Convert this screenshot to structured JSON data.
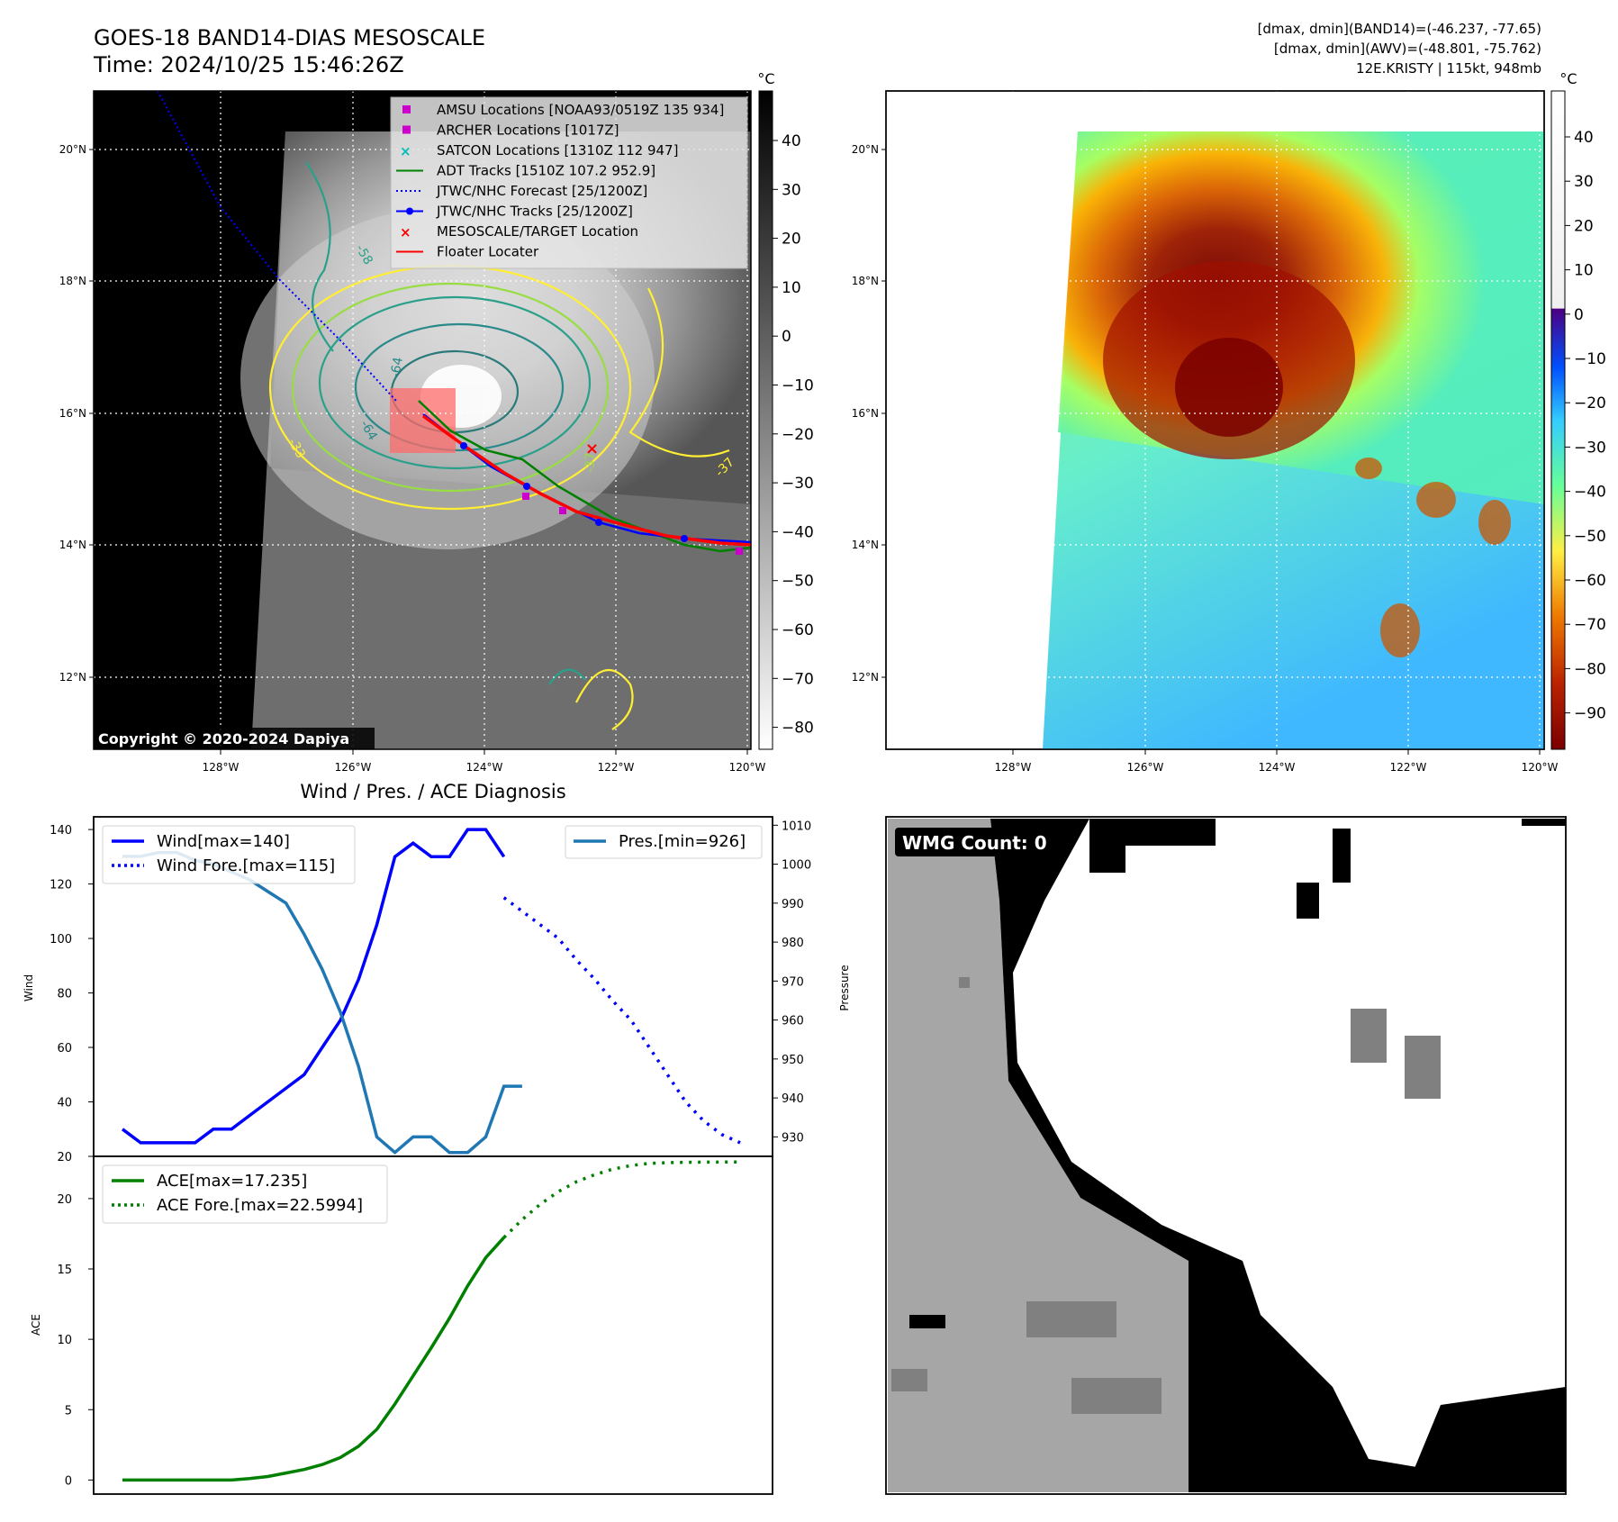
{
  "header": {
    "title": "GOES-18 BAND14-DIAS MESOSCALE",
    "time": "Time: 2024/10/25 15:46:26Z",
    "info_lines": [
      "[dmax, dmin](BAND14)=(-46.237, -77.65)",
      "[dmax, dmin](AWV)=(-48.801, -75.762)",
      "12E.KRISTY | 115kt, 948mb"
    ]
  },
  "colors": {
    "wind": "#0000ff",
    "pressure": "#1f77b4",
    "ace": "#008000",
    "track_red": "#ff0000",
    "adt": "#008000",
    "amsu": "#cc00cc",
    "satcon": "#00bbbb"
  },
  "maps": {
    "lat_labels": [
      "20°N",
      "18°N",
      "16°N",
      "14°N",
      "12°N"
    ],
    "lon_labels": [
      "128°W",
      "126°W",
      "124°W",
      "122°W",
      "120°W"
    ],
    "unit": "°C",
    "gray_ticks": [
      "40",
      "30",
      "20",
      "10",
      "0",
      "−10",
      "−20",
      "−30",
      "−40",
      "−50",
      "−60",
      "−70",
      "−80"
    ],
    "color_ticks": [
      "40",
      "30",
      "20",
      "10",
      "0",
      "−10",
      "−20",
      "−30",
      "−40",
      "−50",
      "−60",
      "−70",
      "−80",
      "−90"
    ],
    "copyright": "Copyright © 2020-2024 Dapiya",
    "legend": [
      {
        "label": "AMSU Locations [NOAA93/0519Z 135 934]",
        "marker": "square",
        "color": "#cc00cc"
      },
      {
        "label": "ARCHER Locations [1017Z]",
        "marker": "square",
        "color": "#cc00cc"
      },
      {
        "label": "SATCON Locations [1310Z 112 947]",
        "marker": "x",
        "color": "#00bbbb"
      },
      {
        "label": "ADT Tracks [1510Z 107.2 952.9]",
        "marker": "line",
        "color": "#008000"
      },
      {
        "label": "JTWC/NHC Forecast [25/1200Z]",
        "marker": "dotted",
        "color": "#0000ff"
      },
      {
        "label": "JTWC/NHC Tracks [25/1200Z]",
        "marker": "line-dot",
        "color": "#0000ff"
      },
      {
        "label": "MESOSCALE/TARGET Location",
        "marker": "x",
        "color": "#ff0000"
      },
      {
        "label": "Floater Locater",
        "marker": "line",
        "color": "#ff0000"
      }
    ],
    "contour_labels": [
      "-58",
      "-64",
      "-64",
      "-33",
      "-37",
      "-37"
    ]
  },
  "diagnosis": {
    "title": "Wind / Pres. / ACE Diagnosis",
    "wind_ylabel": "Wind",
    "pres_ylabel": "Pressure",
    "ace_ylabel": "ACE",
    "wind_ticks": [
      "140",
      "120",
      "100",
      "80",
      "60",
      "40",
      "20"
    ],
    "pres_ticks": [
      "1010",
      "1000",
      "990",
      "980",
      "970",
      "960",
      "950",
      "940",
      "930"
    ],
    "ace_ticks": [
      "20",
      "15",
      "10",
      "5",
      "0"
    ],
    "legend_wind": "Wind[max=140]",
    "legend_wind_fore": "Wind Fore.[max=115]",
    "legend_pres": "Pres.[min=926]",
    "legend_ace": "ACE[max=17.235]",
    "legend_ace_fore": "ACE Fore.[max=22.5994]"
  },
  "chart_data": [
    {
      "type": "line",
      "series": [
        {
          "name": "Wind[max=140]",
          "axis": "left",
          "x": [
            0,
            1,
            2,
            3,
            4,
            5,
            6,
            7,
            8,
            9,
            10,
            11,
            12,
            13,
            14,
            15,
            16,
            17,
            18,
            19,
            20,
            21
          ],
          "values": [
            30,
            25,
            25,
            25,
            25,
            30,
            30,
            35,
            40,
            45,
            50,
            60,
            70,
            85,
            105,
            130,
            135,
            130,
            130,
            140,
            140,
            130
          ]
        },
        {
          "name": "Wind Fore.[max=115]",
          "axis": "left",
          "x": [
            21,
            22,
            23,
            24,
            25,
            26,
            27,
            28,
            29,
            30,
            31,
            32,
            33,
            34
          ],
          "values": [
            115,
            110,
            105,
            100,
            92,
            85,
            77,
            70,
            60,
            50,
            40,
            33,
            28,
            25
          ]
        },
        {
          "name": "Pres.[min=926]",
          "axis": "right",
          "x": [
            0,
            1,
            2,
            3,
            4,
            5,
            6,
            7,
            8,
            9,
            10,
            11,
            12,
            13,
            14,
            15,
            16,
            17,
            18,
            19,
            20,
            21,
            22
          ],
          "values": [
            1002,
            1002,
            1003,
            1003,
            1001,
            1000,
            998,
            996,
            993,
            990,
            982,
            973,
            962,
            948,
            930,
            926,
            930,
            930,
            926,
            926,
            930,
            943,
            943
          ]
        }
      ],
      "ylim_left": [
        20,
        143
      ],
      "ylim_right": [
        925,
        1011
      ],
      "ylabel": "Wind",
      "ylabel_right": "Pressure"
    },
    {
      "type": "line",
      "series": [
        {
          "name": "ACE[max=17.235]",
          "x": [
            0,
            1,
            2,
            3,
            4,
            5,
            6,
            7,
            8,
            9,
            10,
            11,
            12,
            13,
            14,
            15,
            16,
            17,
            18,
            19,
            20,
            21
          ],
          "values": [
            0,
            0,
            0,
            0,
            0,
            0,
            0,
            0.1,
            0.25,
            0.5,
            0.75,
            1.1,
            1.6,
            2.4,
            3.6,
            5.4,
            7.4,
            9.4,
            11.5,
            13.8,
            15.8,
            17.235
          ]
        },
        {
          "name": "ACE Fore.[max=22.5994]",
          "x": [
            21,
            22,
            23,
            24,
            25,
            26,
            27,
            28,
            29,
            30,
            31,
            32,
            33,
            34
          ],
          "values": [
            17.235,
            18.5,
            19.6,
            20.5,
            21.2,
            21.7,
            22.1,
            22.35,
            22.5,
            22.55,
            22.58,
            22.59,
            22.5994,
            22.5994
          ]
        }
      ],
      "ylim": [
        -1,
        23
      ],
      "ylabel": "ACE"
    }
  ],
  "wmg": {
    "label": "WMG Count: 0"
  }
}
